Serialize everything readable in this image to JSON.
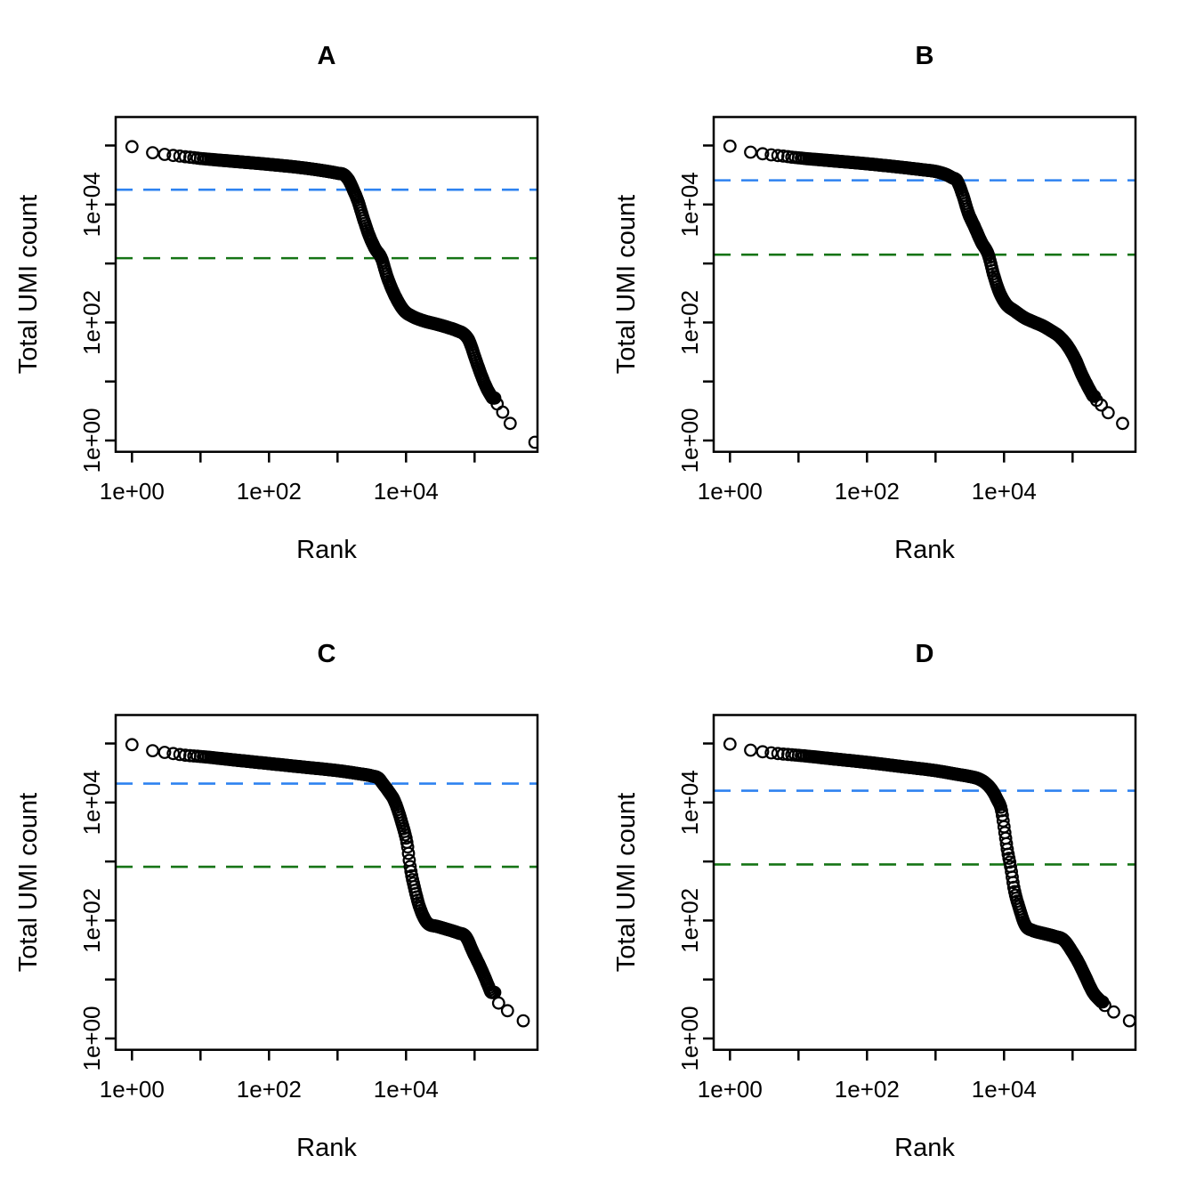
{
  "figure": {
    "xlabel": "Rank",
    "ylabel": "Total UMI count",
    "x_tick_labels": [
      {
        "log10": 0,
        "label": "1e+00"
      },
      {
        "log10": 2,
        "label": "1e+02"
      },
      {
        "log10": 4,
        "label": "1e+04"
      }
    ],
    "y_tick_labels": [
      {
        "log10": 0,
        "label": "1e+00"
      },
      {
        "log10": 2,
        "label": "1e+02"
      },
      {
        "log10": 4,
        "label": "1e+04"
      }
    ],
    "x_minor_tick_log10": [
      0,
      1,
      2,
      3,
      4,
      5
    ],
    "y_minor_tick_log10": [
      0,
      1,
      2,
      3,
      4,
      5
    ],
    "colors": {
      "points": "#000000",
      "knee_line": "#2e82f0",
      "inflection_line": "#157415",
      "axis": "#000000"
    }
  },
  "chart_data": [
    {
      "type": "scatter",
      "panel": "A",
      "title": "A",
      "xlabel": "Rank",
      "ylabel": "Total UMI count",
      "x_scale": "log10",
      "y_scale": "log10",
      "xlim": [
        1,
        800000
      ],
      "ylim": [
        1,
        300000
      ],
      "knee_value": 18000,
      "knee_log10": 4.25,
      "inflection_value": 1200,
      "inflection_log10": 3.09,
      "curve_log10_anchors": [
        [
          0,
          4.98
        ],
        [
          0.19,
          4.9
        ],
        [
          0.35,
          4.87
        ],
        [
          0.54,
          4.84
        ],
        [
          0.78,
          4.81
        ],
        [
          1.0,
          4.78
        ],
        [
          1.5,
          4.73
        ],
        [
          2.0,
          4.68
        ],
        [
          2.5,
          4.62
        ],
        [
          2.75,
          4.58
        ],
        [
          3.0,
          4.53
        ],
        [
          3.1,
          4.5
        ],
        [
          3.17,
          4.4
        ],
        [
          3.23,
          4.25
        ],
        [
          3.3,
          4.05
        ],
        [
          3.38,
          3.75
        ],
        [
          3.47,
          3.45
        ],
        [
          3.55,
          3.25
        ],
        [
          3.64,
          3.09
        ],
        [
          3.72,
          2.79
        ],
        [
          3.8,
          2.55
        ],
        [
          3.9,
          2.32
        ],
        [
          3.98,
          2.19
        ],
        [
          4.1,
          2.1
        ],
        [
          4.25,
          2.03
        ],
        [
          4.45,
          1.97
        ],
        [
          4.6,
          1.92
        ],
        [
          4.75,
          1.86
        ],
        [
          4.85,
          1.8
        ],
        [
          4.92,
          1.69
        ],
        [
          5.02,
          1.36
        ],
        [
          5.1,
          1.1
        ],
        [
          5.18,
          0.88
        ],
        [
          5.26,
          0.72
        ]
      ],
      "solid_until_log10x": 5.3,
      "tail_points_log10": [
        [
          5.33,
          0.62
        ],
        [
          5.41,
          0.48
        ],
        [
          5.52,
          0.29
        ],
        [
          5.88,
          -0.03
        ]
      ]
    },
    {
      "type": "scatter",
      "panel": "B",
      "title": "B",
      "xlabel": "Rank",
      "ylabel": "Total UMI count",
      "x_scale": "log10",
      "y_scale": "log10",
      "xlim": [
        1,
        600000
      ],
      "ylim": [
        1,
        300000
      ],
      "knee_value": 26000,
      "knee_log10": 4.41,
      "inflection_value": 1400,
      "inflection_log10": 3.15,
      "curve_log10_anchors": [
        [
          0,
          4.99
        ],
        [
          0.19,
          4.91
        ],
        [
          0.35,
          4.88
        ],
        [
          0.54,
          4.85
        ],
        [
          0.78,
          4.82
        ],
        [
          1.0,
          4.79
        ],
        [
          1.5,
          4.74
        ],
        [
          2.0,
          4.69
        ],
        [
          2.5,
          4.63
        ],
        [
          2.8,
          4.59
        ],
        [
          3.0,
          4.56
        ],
        [
          3.15,
          4.51
        ],
        [
          3.25,
          4.45
        ],
        [
          3.31,
          4.41
        ],
        [
          3.4,
          4.15
        ],
        [
          3.48,
          3.85
        ],
        [
          3.57,
          3.62
        ],
        [
          3.67,
          3.36
        ],
        [
          3.77,
          3.15
        ],
        [
          3.85,
          2.8
        ],
        [
          3.93,
          2.52
        ],
        [
          4.03,
          2.31
        ],
        [
          4.15,
          2.2
        ],
        [
          4.3,
          2.08
        ],
        [
          4.45,
          2.0
        ],
        [
          4.55,
          1.95
        ],
        [
          4.7,
          1.85
        ],
        [
          4.81,
          1.76
        ],
        [
          4.94,
          1.58
        ],
        [
          5.05,
          1.35
        ],
        [
          5.13,
          1.13
        ],
        [
          5.22,
          0.92
        ],
        [
          5.3,
          0.75
        ]
      ],
      "solid_until_log10x": 5.32,
      "tail_points_log10": [
        [
          5.35,
          0.68
        ],
        [
          5.42,
          0.6
        ],
        [
          5.52,
          0.47
        ],
        [
          5.73,
          0.29
        ]
      ]
    },
    {
      "type": "scatter",
      "panel": "C",
      "title": "C",
      "xlabel": "Rank",
      "ylabel": "Total UMI count",
      "x_scale": "log10",
      "y_scale": "log10",
      "xlim": [
        1,
        550000
      ],
      "ylim": [
        1,
        300000
      ],
      "knee_value": 21000,
      "knee_log10": 4.32,
      "inflection_value": 810,
      "inflection_log10": 2.91,
      "curve_log10_anchors": [
        [
          0,
          4.98
        ],
        [
          0.19,
          4.9
        ],
        [
          0.35,
          4.87
        ],
        [
          0.54,
          4.84
        ],
        [
          0.78,
          4.8
        ],
        [
          1.0,
          4.78
        ],
        [
          1.5,
          4.72
        ],
        [
          2.0,
          4.66
        ],
        [
          2.5,
          4.6
        ],
        [
          3.0,
          4.54
        ],
        [
          3.3,
          4.49
        ],
        [
          3.5,
          4.45
        ],
        [
          3.6,
          4.41
        ],
        [
          3.66,
          4.32
        ],
        [
          3.75,
          4.18
        ],
        [
          3.83,
          4.03
        ],
        [
          3.94,
          3.65
        ],
        [
          4.02,
          3.27
        ],
        [
          4.06,
          2.91
        ],
        [
          4.13,
          2.52
        ],
        [
          4.2,
          2.22
        ],
        [
          4.31,
          1.96
        ],
        [
          4.45,
          1.9
        ],
        [
          4.57,
          1.86
        ],
        [
          4.76,
          1.79
        ],
        [
          4.87,
          1.73
        ],
        [
          4.98,
          1.46
        ],
        [
          5.08,
          1.22
        ],
        [
          5.13,
          1.09
        ],
        [
          5.24,
          0.78
        ]
      ],
      "solid_until_log10x": 5.3,
      "tail_points_log10": [
        [
          5.35,
          0.6
        ],
        [
          5.48,
          0.47
        ],
        [
          5.71,
          0.3
        ]
      ]
    },
    {
      "type": "scatter",
      "panel": "D",
      "title": "D",
      "xlabel": "Rank",
      "ylabel": "Total UMI count",
      "x_scale": "log10",
      "y_scale": "log10",
      "xlim": [
        1,
        700000
      ],
      "ylim": [
        1,
        300000
      ],
      "knee_value": 16000,
      "knee_log10": 4.2,
      "inflection_value": 890,
      "inflection_log10": 2.95,
      "curve_log10_anchors": [
        [
          0,
          4.99
        ],
        [
          0.19,
          4.91
        ],
        [
          0.35,
          4.88
        ],
        [
          0.54,
          4.85
        ],
        [
          0.78,
          4.82
        ],
        [
          1.0,
          4.8
        ],
        [
          1.5,
          4.74
        ],
        [
          2.0,
          4.68
        ],
        [
          2.5,
          4.61
        ],
        [
          3.0,
          4.54
        ],
        [
          3.3,
          4.48
        ],
        [
          3.5,
          4.44
        ],
        [
          3.63,
          4.4
        ],
        [
          3.73,
          4.33
        ],
        [
          3.83,
          4.2
        ],
        [
          3.9,
          4.05
        ],
        [
          3.96,
          3.88
        ],
        [
          4.02,
          3.42
        ],
        [
          4.06,
          3.12
        ],
        [
          4.09,
          2.95
        ],
        [
          4.15,
          2.52
        ],
        [
          4.22,
          2.22
        ],
        [
          4.31,
          1.92
        ],
        [
          4.42,
          1.83
        ],
        [
          4.54,
          1.79
        ],
        [
          4.74,
          1.73
        ],
        [
          4.87,
          1.67
        ],
        [
          5.0,
          1.46
        ],
        [
          5.09,
          1.28
        ],
        [
          5.17,
          1.09
        ],
        [
          5.3,
          0.78
        ],
        [
          5.42,
          0.62
        ]
      ],
      "solid_until_log10x": 5.44,
      "tail_points_log10": [
        [
          5.47,
          0.56
        ],
        [
          5.6,
          0.45
        ],
        [
          5.83,
          0.3
        ]
      ]
    }
  ]
}
